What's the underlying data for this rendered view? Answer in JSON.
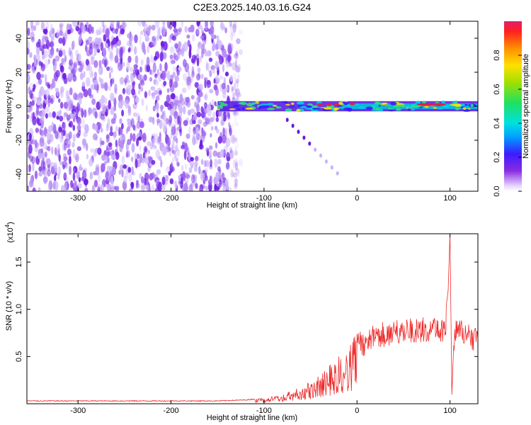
{
  "figure": {
    "title": "C2E3.2025.140.03.16.G24"
  },
  "colors": {
    "spectral_hot": "#e0204a",
    "spectral_mid": "#30e07a",
    "spectral_low": "#5a1fe6",
    "spectral_faint": "#d8c8ff",
    "snr_line": "#ee2a2a",
    "axis": "#000000"
  },
  "chart_data": [
    {
      "type": "heatmap",
      "title": "C2E3.2025.140.03.16.G24",
      "xlabel": "Height of straight line (km)",
      "ylabel": "Frequency (Hz)",
      "xlim": [
        -355,
        130
      ],
      "ylim": [
        -50,
        50
      ],
      "x_ticks": [
        -300,
        -200,
        -100,
        0,
        100
      ],
      "x_tick_labels": [
        "-300",
        "-200",
        "-100",
        "0",
        "100"
      ],
      "y_ticks": [
        -40,
        -20,
        0,
        20,
        40
      ],
      "y_tick_labels": [
        "-40",
        "-20",
        "0",
        "20",
        "40"
      ],
      "colorbar": {
        "label": "Normalized spectral amplitude",
        "range": [
          0.0,
          1.0
        ],
        "ticks": [
          0.0,
          0.2,
          0.4,
          0.6,
          0.8
        ],
        "tick_labels": [
          "0.0",
          "0.2",
          "0.4",
          "0.6",
          "0.8"
        ],
        "colormap": "rainbow (violet at 0 to red at 1)"
      },
      "regions": [
        {
          "name": "noise",
          "x_range": [
            -355,
            -125
          ],
          "freq_range": [
            -50,
            50
          ],
          "amplitude": "0.0-0.2"
        },
        {
          "name": "signal band",
          "x_range": [
            -150,
            130
          ],
          "freq_center": 0,
          "half_width_hz": 3,
          "amplitude": "0.3-1.0"
        },
        {
          "name": "peak",
          "x": 75,
          "freq": 1,
          "amplitude": 1.0
        }
      ]
    },
    {
      "type": "line",
      "xlabel": "Height of straight line (km)",
      "ylabel": "SNR (10 * v/v)",
      "y_multiplier_label": "(x10",
      "y_multiplier_exp": "4",
      "xlim": [
        -355,
        130
      ],
      "ylim": [
        0,
        1.8
      ],
      "x_ticks": [
        -300,
        -200,
        -100,
        0,
        100
      ],
      "x_tick_labels": [
        "-300",
        "-200",
        "-100",
        "0",
        "100"
      ],
      "y_ticks": [
        0.5,
        1.0,
        1.5
      ],
      "y_tick_labels": [
        "0.5",
        "1.0",
        "1.5"
      ],
      "series": [
        {
          "x": [
            -355,
            -300,
            -250,
            -200,
            -150,
            -120,
            -100,
            -80,
            -70,
            -60,
            -50,
            -40,
            -30,
            -20,
            -10,
            0,
            10,
            20,
            30,
            40,
            50,
            60,
            70,
            80,
            90,
            95,
            98,
            100,
            102,
            105,
            110,
            120,
            130
          ],
          "y": [
            0.03,
            0.03,
            0.03,
            0.03,
            0.03,
            0.04,
            0.06,
            0.1,
            0.14,
            0.18,
            0.24,
            0.3,
            0.4,
            0.5,
            0.6,
            0.75,
            0.8,
            0.85,
            0.88,
            0.9,
            0.9,
            0.92,
            0.92,
            0.92,
            0.9,
            0.95,
            1.2,
            1.8,
            0.1,
            0.88,
            0.9,
            0.85,
            0.82
          ]
        }
      ]
    }
  ]
}
